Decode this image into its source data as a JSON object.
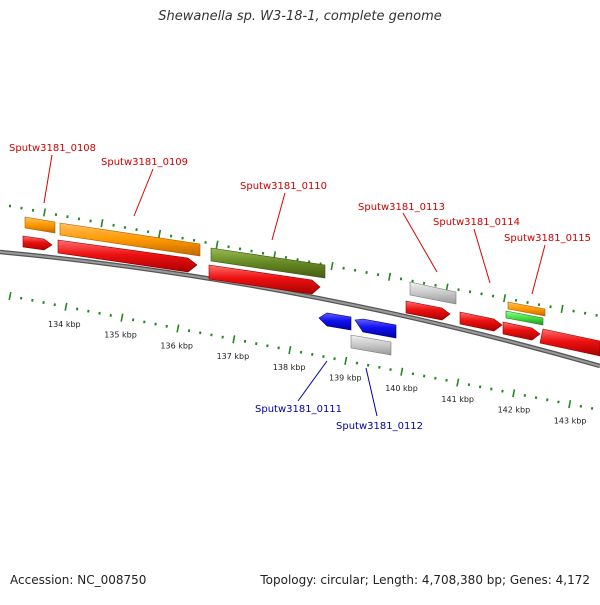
{
  "title": "Shewanella sp. W3-18-1, complete genome",
  "footer": {
    "accession": "Accession: NC_008750",
    "topology": "Topology: circular; Length: 4,708,380 bp; Genes: 4,172"
  },
  "scale": {
    "labels": [
      "134 kbp",
      "135 kbp",
      "136 kbp",
      "137 kbp",
      "138 kbp",
      "139 kbp",
      "140 kbp",
      "141 kbp",
      "142 kbp",
      "143 kbp"
    ]
  },
  "genes": [
    {
      "name": "Sputw3181_0108",
      "strand": "forward",
      "label_color": "#cc0000"
    },
    {
      "name": "Sputw3181_0109",
      "strand": "forward",
      "label_color": "#cc0000"
    },
    {
      "name": "Sputw3181_0110",
      "strand": "forward",
      "label_color": "#cc0000"
    },
    {
      "name": "Sputw3181_0111",
      "strand": "reverse",
      "label_color": "#0000aa"
    },
    {
      "name": "Sputw3181_0112",
      "strand": "reverse",
      "label_color": "#0000aa"
    },
    {
      "name": "Sputw3181_0113",
      "strand": "forward",
      "label_color": "#cc0000"
    },
    {
      "name": "Sputw3181_0114",
      "strand": "forward",
      "label_color": "#cc0000"
    },
    {
      "name": "Sputw3181_0115",
      "strand": "forward",
      "label_color": "#cc0000"
    }
  ],
  "colors": {
    "forward_cds": "#ee1111",
    "reverse_cds": "#1111ee",
    "orange_feature": "#ff9900",
    "olive_feature": "#668822",
    "gray_feature": "#c8c8c8",
    "light_green_feature": "#44dd44",
    "backbone": "#888888",
    "tick": "#228822"
  }
}
